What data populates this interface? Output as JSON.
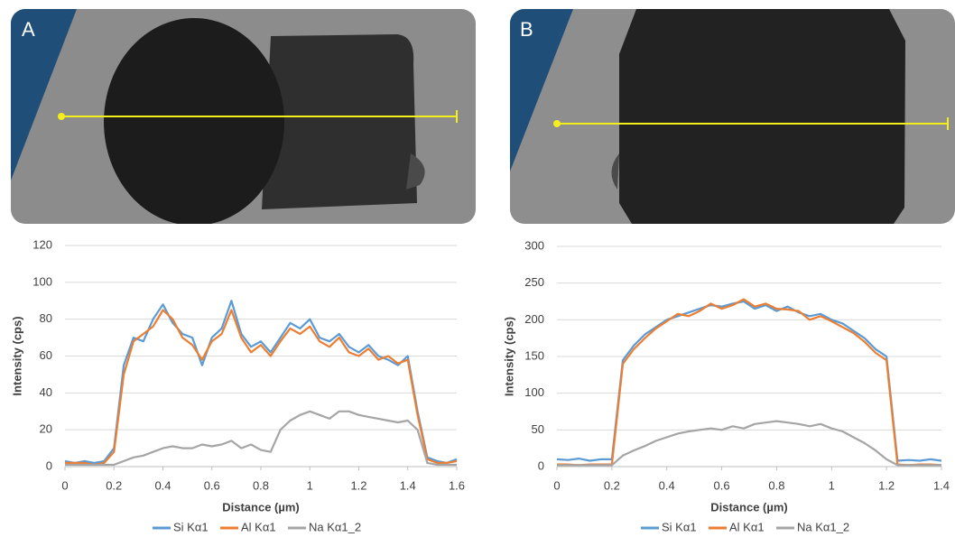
{
  "chart_data": [
    {
      "type": "line",
      "panel_label": "A",
      "xlabel": "Distance (µm)",
      "ylabel": "Intensity (cps)",
      "x": [
        0,
        0.04,
        0.08,
        0.12,
        0.16,
        0.2,
        0.24,
        0.28,
        0.32,
        0.36,
        0.4,
        0.44,
        0.48,
        0.52,
        0.56,
        0.6,
        0.64,
        0.68,
        0.72,
        0.76,
        0.8,
        0.84,
        0.88,
        0.92,
        0.96,
        1,
        1.04,
        1.08,
        1.12,
        1.16,
        1.2,
        1.24,
        1.28,
        1.32,
        1.36,
        1.4,
        1.44,
        1.48,
        1.52,
        1.56,
        1.6
      ],
      "series": [
        {
          "name": "Si Kα1",
          "color": "#5b9bd5",
          "values": [
            3,
            2,
            3,
            2,
            3,
            10,
            55,
            70,
            68,
            80,
            88,
            78,
            72,
            70,
            55,
            70,
            75,
            90,
            72,
            65,
            68,
            62,
            70,
            78,
            75,
            80,
            70,
            68,
            72,
            65,
            62,
            66,
            60,
            58,
            55,
            60,
            30,
            5,
            3,
            2,
            4
          ]
        },
        {
          "name": "Al Kα1",
          "color": "#ed7d31",
          "values": [
            2,
            2,
            2,
            1,
            2,
            8,
            50,
            68,
            72,
            76,
            85,
            80,
            70,
            66,
            58,
            68,
            72,
            85,
            70,
            62,
            66,
            60,
            68,
            75,
            72,
            76,
            68,
            65,
            70,
            62,
            60,
            64,
            58,
            60,
            56,
            58,
            28,
            4,
            2,
            2,
            3
          ]
        },
        {
          "name": "Na Kα1_2",
          "color": "#a5a5a5",
          "values": [
            1,
            1,
            1,
            1,
            1,
            1,
            3,
            5,
            6,
            8,
            10,
            11,
            10,
            10,
            12,
            11,
            12,
            14,
            10,
            12,
            9,
            8,
            20,
            25,
            28,
            30,
            28,
            26,
            30,
            30,
            28,
            27,
            26,
            25,
            24,
            25,
            20,
            2,
            1,
            1,
            1
          ]
        }
      ],
      "xlim": [
        0,
        1.6
      ],
      "xticks": [
        0,
        0.2,
        0.4,
        0.6,
        0.8,
        1,
        1.2,
        1.4,
        1.6
      ],
      "ylim": [
        0,
        120
      ],
      "yticks": [
        0,
        20,
        40,
        60,
        80,
        100,
        120
      ],
      "grid": true
    },
    {
      "type": "line",
      "panel_label": "B",
      "xlabel": "Distance (µm)",
      "ylabel": "Intensity (cps)",
      "x": [
        0,
        0.04,
        0.08,
        0.12,
        0.16,
        0.2,
        0.24,
        0.28,
        0.32,
        0.36,
        0.4,
        0.44,
        0.48,
        0.52,
        0.56,
        0.6,
        0.64,
        0.68,
        0.72,
        0.76,
        0.8,
        0.84,
        0.88,
        0.92,
        0.96,
        1,
        1.04,
        1.08,
        1.12,
        1.16,
        1.2,
        1.24,
        1.28,
        1.32,
        1.36,
        1.4
      ],
      "series": [
        {
          "name": "Si Kα1",
          "color": "#5b9bd5",
          "values": [
            10,
            9,
            11,
            8,
            10,
            10,
            145,
            165,
            180,
            190,
            200,
            205,
            210,
            215,
            220,
            218,
            222,
            225,
            215,
            220,
            212,
            218,
            210,
            205,
            208,
            200,
            195,
            185,
            175,
            160,
            150,
            8,
            9,
            8,
            10,
            8
          ]
        },
        {
          "name": "Al Kα1",
          "color": "#ed7d31",
          "values": [
            3,
            3,
            2,
            3,
            3,
            3,
            140,
            160,
            175,
            188,
            198,
            208,
            205,
            212,
            222,
            215,
            220,
            228,
            218,
            222,
            215,
            214,
            212,
            200,
            205,
            198,
            190,
            182,
            170,
            155,
            145,
            3,
            2,
            3,
            3,
            2
          ]
        },
        {
          "name": "Na Kα1_2",
          "color": "#a5a5a5",
          "values": [
            2,
            2,
            2,
            2,
            2,
            2,
            15,
            22,
            28,
            35,
            40,
            45,
            48,
            50,
            52,
            50,
            55,
            52,
            58,
            60,
            62,
            60,
            58,
            55,
            58,
            52,
            48,
            40,
            32,
            22,
            10,
            2,
            2,
            2,
            2,
            2
          ]
        }
      ],
      "xlim": [
        0,
        1.4
      ],
      "xticks": [
        0,
        0.2,
        0.4,
        0.6,
        0.8,
        1,
        1.2,
        1.4
      ],
      "ylim": [
        0,
        300
      ],
      "yticks": [
        0,
        50,
        100,
        150,
        200,
        250,
        300
      ],
      "grid": true
    }
  ]
}
